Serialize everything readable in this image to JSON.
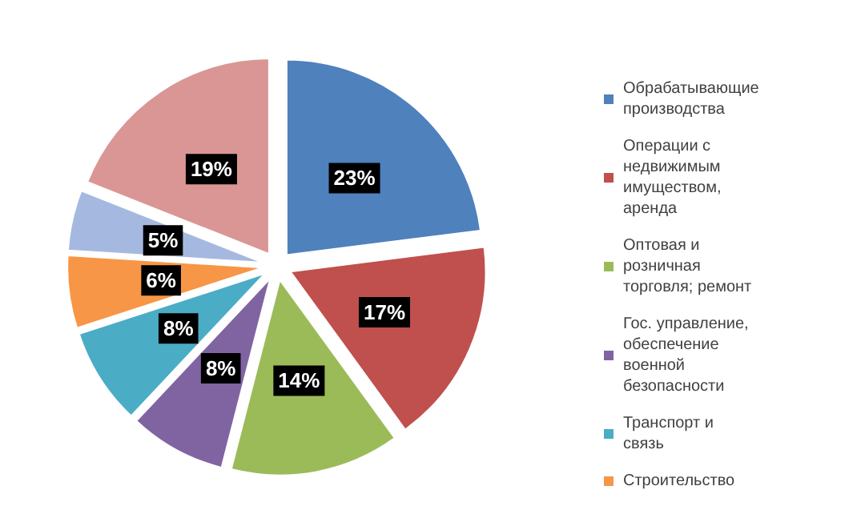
{
  "chart_data": {
    "type": "pie",
    "categories": [
      "Обрабатывающие производства",
      "Операции с недвижимым имуществом, аренда",
      "Оптовая и розничная торговля; ремонт",
      "Гос. управление, обеспечение военной безопасности",
      "Транспорт и связь",
      "Строительство",
      null,
      null
    ],
    "values": [
      23,
      17,
      14,
      8,
      8,
      6,
      5,
      19
    ],
    "value_labels": [
      "23%",
      "17%",
      "14%",
      "8%",
      "8%",
      "6%",
      "5%",
      "19%"
    ],
    "colors": [
      "#4f81bd",
      "#c0504d",
      "#9bbb59",
      "#8064a2",
      "#4bacc6",
      "#f79646",
      "#a5b9e0",
      "#d99694"
    ],
    "legend": "right"
  }
}
